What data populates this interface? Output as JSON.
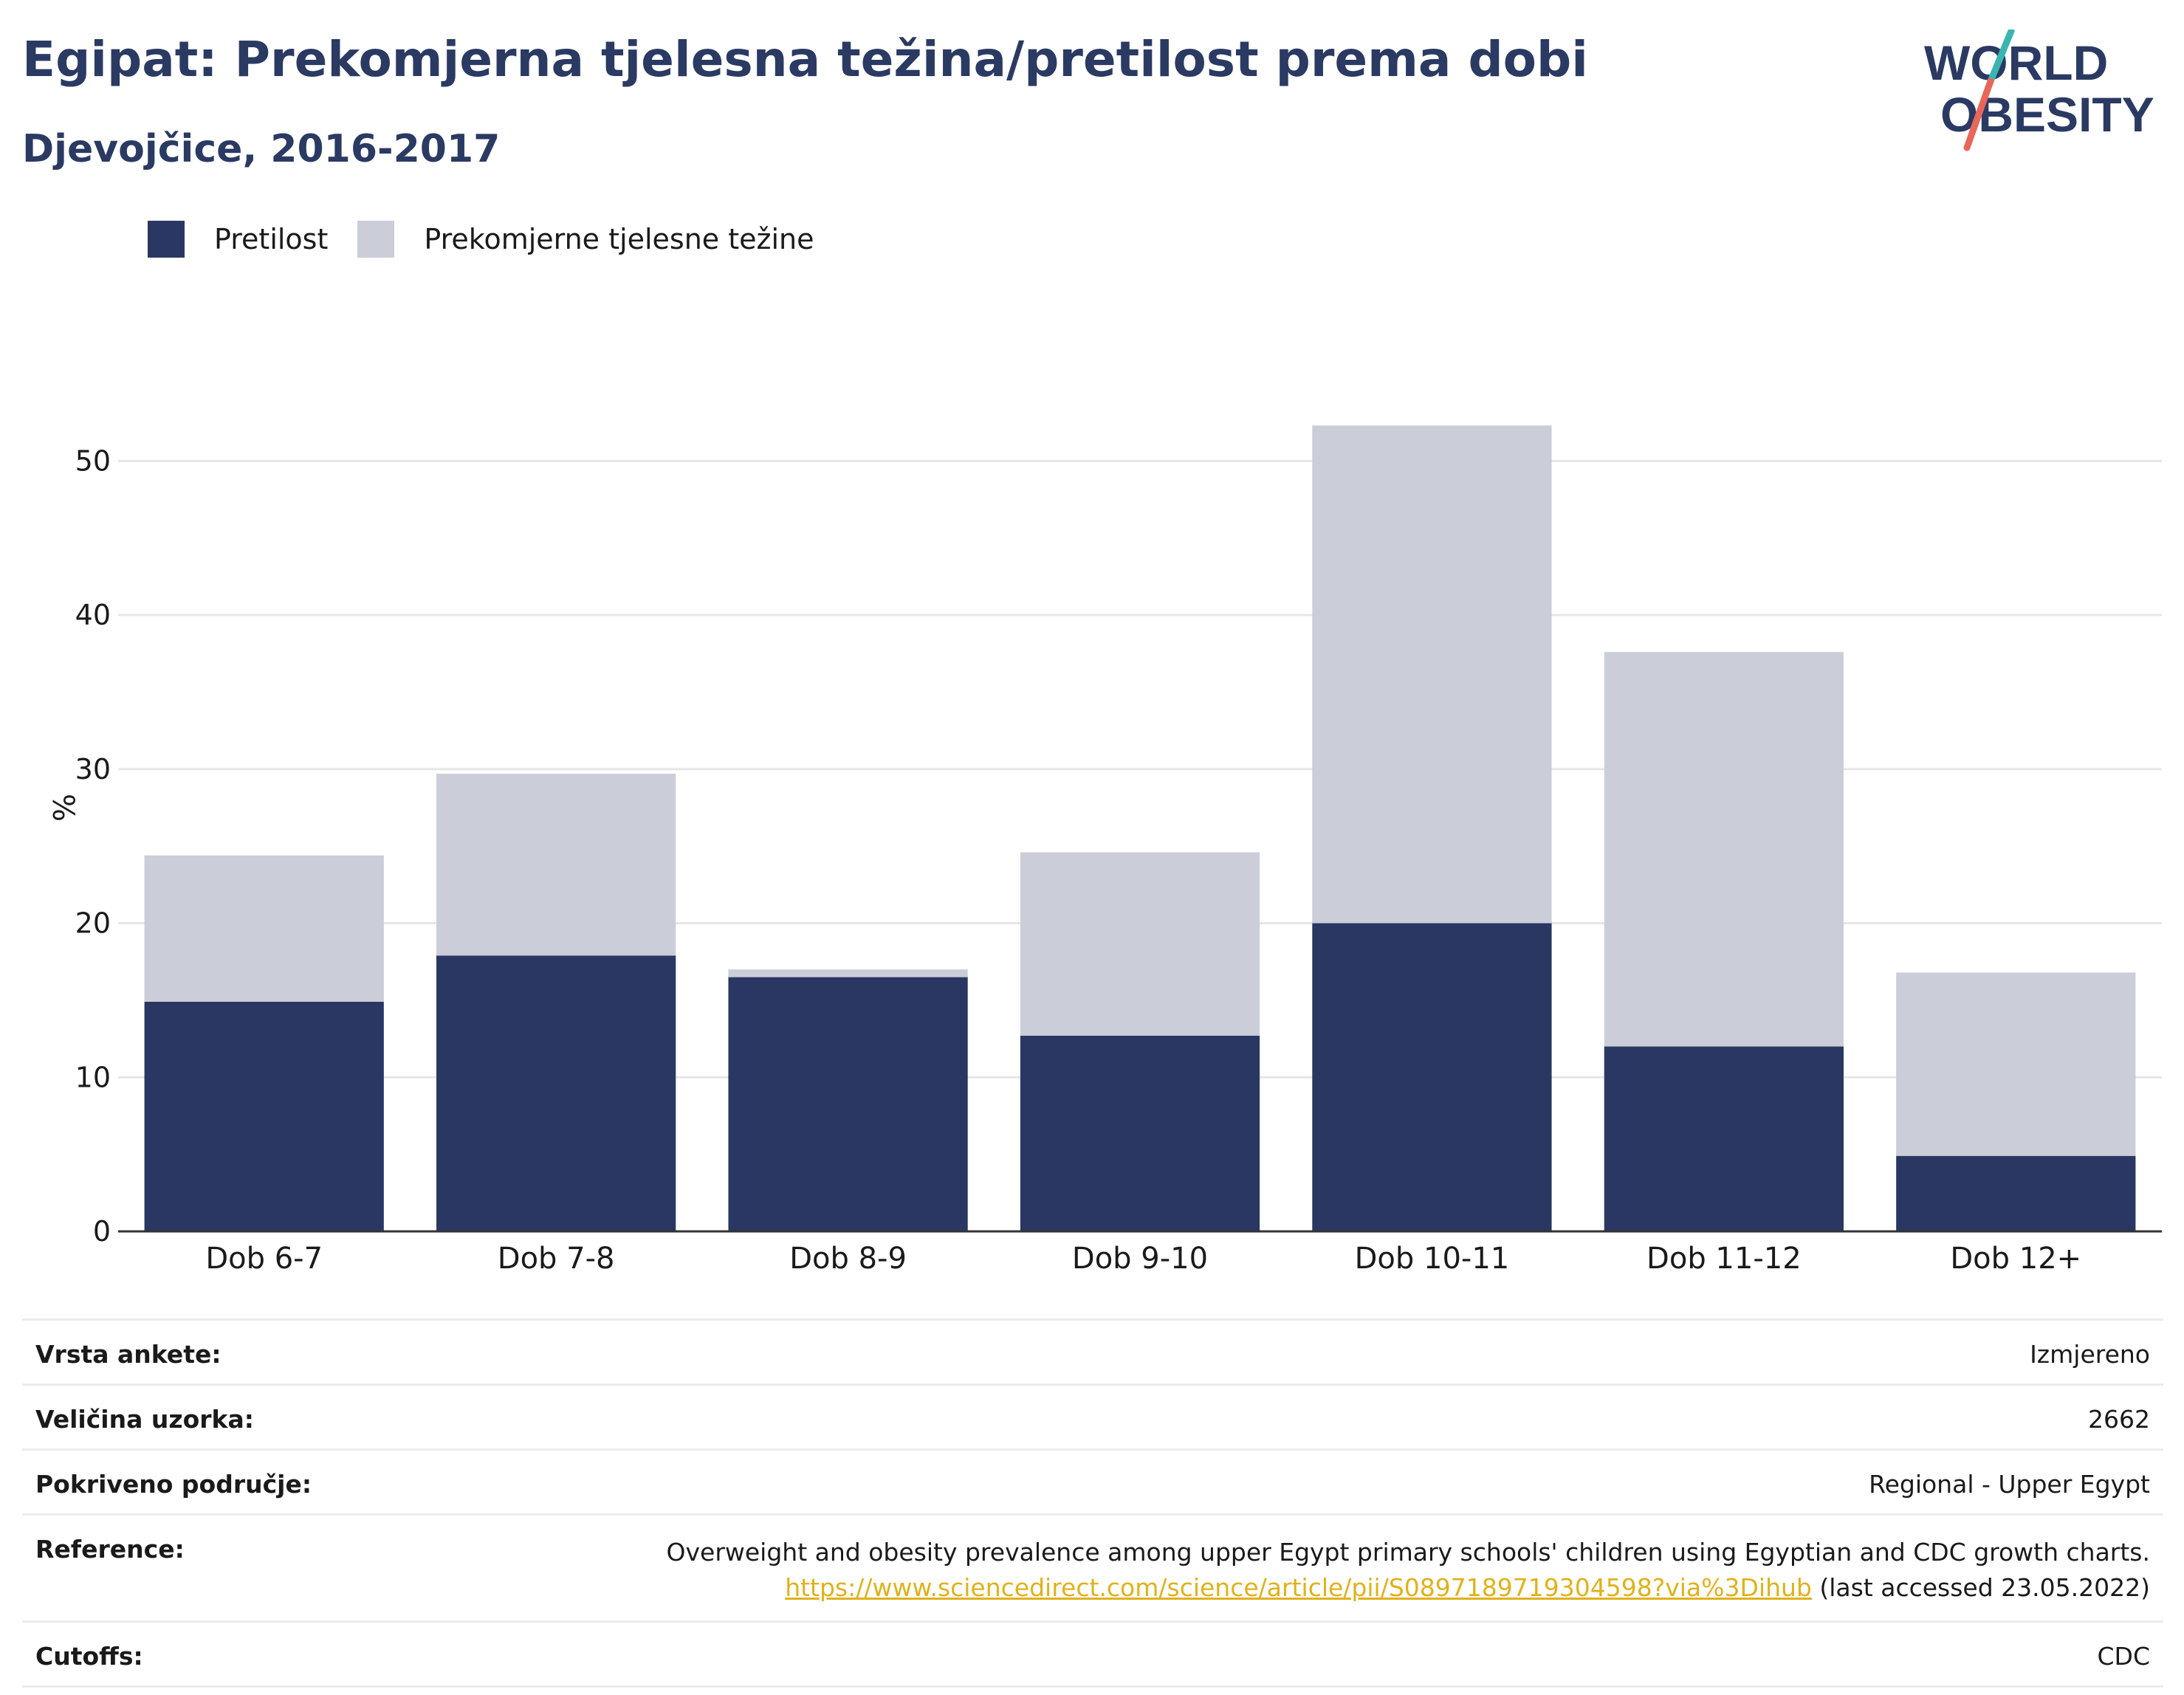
{
  "header": {
    "title": "Egipat: Prekomjerna tjelesna težina/pretilost prema dobi",
    "subtitle": "Djevojčice, 2016-2017"
  },
  "logo": {
    "line1": "WORLD",
    "line2": "OBESITY",
    "colors": {
      "text": "#2a3a63",
      "slash_top": "#3ab5b0",
      "slash_bottom": "#e8675a"
    }
  },
  "colors": {
    "obesity": "#2a3763",
    "overweight": "#cbcdd8",
    "grid": "#e6e6e6",
    "axis": "#333333"
  },
  "chart_data": {
    "type": "bar",
    "stacked": true,
    "categories": [
      "Dob 6-7",
      "Dob 7-8",
      "Dob 8-9",
      "Dob 9-10",
      "Dob 10-11",
      "Dob 11-12",
      "Dob 12+"
    ],
    "series": [
      {
        "name": "Pretilost",
        "values": [
          14.9,
          17.9,
          16.5,
          12.7,
          20.0,
          12.0,
          4.9
        ]
      },
      {
        "name": "Prekomjerne tjelesne težine",
        "values": [
          9.5,
          11.8,
          0.5,
          11.9,
          32.3,
          25.6,
          11.9
        ]
      }
    ],
    "ylabel": "%",
    "ylim": [
      0,
      55
    ],
    "yticks": [
      "0",
      "10",
      "20",
      "30",
      "40",
      "50"
    ],
    "grid": true,
    "legend": "top-left"
  },
  "meta": {
    "rows": [
      {
        "label": "Vrsta ankete:",
        "value": "Izmjereno"
      },
      {
        "label": "Veličina uzorka:",
        "value": "2662"
      },
      {
        "label": "Pokriveno područje:",
        "value": "Regional - Upper Egypt"
      }
    ],
    "reference": {
      "label": "Reference:",
      "text": "Overweight and obesity prevalence among upper Egypt primary schools' children using Egyptian and CDC growth charts.",
      "link": "https://www.sciencedirect.com/science/article/pii/S0897189719304598?via%3Dihub",
      "suffix": " (last accessed 23.05.2022)"
    },
    "cutoffs": {
      "label": "Cutoffs:",
      "value": "CDC"
    }
  }
}
